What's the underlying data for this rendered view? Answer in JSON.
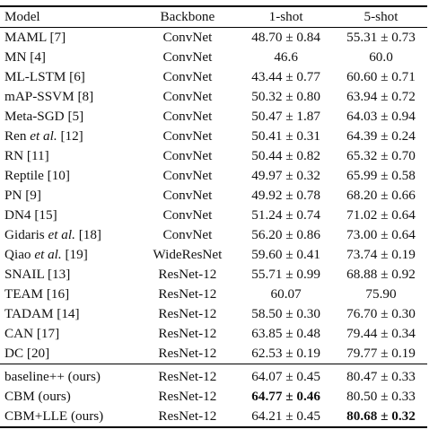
{
  "headers": {
    "model": "Model",
    "backbone": "Backbone",
    "one_shot": "1-shot",
    "five_shot": "5-shot"
  },
  "rows": [
    {
      "model": "MAML [7]",
      "backbone": "ConvNet",
      "one_shot": "48.70 ± 0.84",
      "five_shot": "55.31 ± 0.73"
    },
    {
      "model": "MN [4]",
      "backbone": "ConvNet",
      "one_shot": "46.6",
      "five_shot": "60.0"
    },
    {
      "model": "ML-LSTM [6]",
      "backbone": "ConvNet",
      "one_shot": "43.44 ± 0.77",
      "five_shot": "60.60 ± 0.71"
    },
    {
      "model": "mAP-SSVM [8]",
      "backbone": "ConvNet",
      "one_shot": "50.32 ± 0.80",
      "five_shot": "63.94 ± 0.72"
    },
    {
      "model": "Meta-SGD [5]",
      "backbone": "ConvNet",
      "one_shot": "50.47 ± 1.87",
      "five_shot": "64.03 ± 0.94"
    },
    {
      "model_pre": "Ren ",
      "model_it": "et al.",
      "model_post": " [12]",
      "backbone": "ConvNet",
      "one_shot": "50.41 ± 0.31",
      "five_shot": "64.39 ± 0.24"
    },
    {
      "model": "RN [11]",
      "backbone": "ConvNet",
      "one_shot": "50.44 ± 0.82",
      "five_shot": "65.32 ± 0.70"
    },
    {
      "model": "Reptile [10]",
      "backbone": "ConvNet",
      "one_shot": "49.97 ± 0.32",
      "five_shot": "65.99 ± 0.58"
    },
    {
      "model": "PN [9]",
      "backbone": "ConvNet",
      "one_shot": "49.92 ± 0.78",
      "five_shot": "68.20 ± 0.66"
    },
    {
      "model": "DN4 [15]",
      "backbone": "ConvNet",
      "one_shot": "51.24 ± 0.74",
      "five_shot": "71.02 ± 0.64"
    },
    {
      "model_pre": "Gidaris ",
      "model_it": "et al.",
      "model_post": " [18]",
      "backbone": "ConvNet",
      "one_shot": "56.20 ± 0.86",
      "five_shot": "73.00 ± 0.64"
    },
    {
      "model_pre": "Qiao ",
      "model_it": "et al.",
      "model_post": " [19]",
      "backbone": "WideResNet",
      "one_shot": "59.60 ± 0.41",
      "five_shot": "73.74 ± 0.19"
    },
    {
      "model": "SNAIL [13]",
      "backbone": "ResNet-12",
      "one_shot": "55.71 ± 0.99",
      "five_shot": "68.88 ± 0.92"
    },
    {
      "model": "TEAM [16]",
      "backbone": "ResNet-12",
      "one_shot": "60.07",
      "five_shot": "75.90"
    },
    {
      "model": "TADAM [14]",
      "backbone": "ResNet-12",
      "one_shot": "58.50 ± 0.30",
      "five_shot": "76.70 ± 0.30"
    },
    {
      "model": "CAN [17]",
      "backbone": "ResNet-12",
      "one_shot": "63.85 ± 0.48",
      "five_shot": "79.44 ± 0.34"
    },
    {
      "model": "DC [20]",
      "backbone": "ResNet-12",
      "one_shot": "62.53 ± 0.19",
      "five_shot": "79.77 ± 0.19"
    }
  ],
  "ours": [
    {
      "model": "baseline++ (ours)",
      "backbone": "ResNet-12",
      "one_shot": "64.07 ± 0.45",
      "five_shot": "80.47 ± 0.33"
    },
    {
      "model": "CBM (ours)",
      "backbone": "ResNet-12",
      "one_shot": "64.77 ± 0.46",
      "five_shot": "80.50 ± 0.33"
    },
    {
      "model": "CBM+LLE (ours)",
      "backbone": "ResNet-12",
      "one_shot": "64.21 ± 0.45",
      "five_shot": "80.68 ± 0.32"
    }
  ]
}
